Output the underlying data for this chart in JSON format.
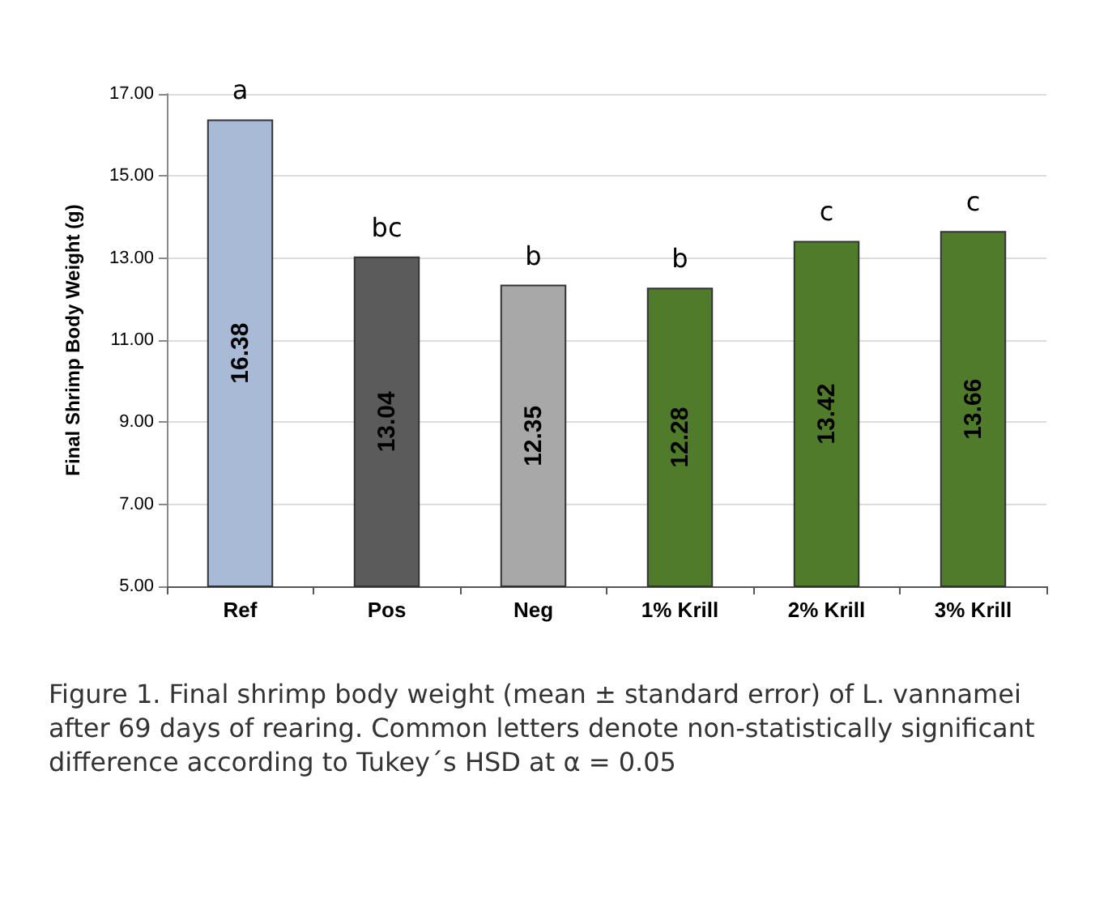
{
  "chart_data": {
    "type": "bar",
    "ylabel": "Final Shrimp Body Weight (g)",
    "categories": [
      "Ref",
      "Pos",
      "Neg",
      "1% Krill",
      "2% Krill",
      "3% Krill"
    ],
    "values": [
      16.38,
      13.04,
      12.35,
      12.28,
      13.42,
      13.66
    ],
    "colors": [
      "#a9bad6",
      "#5b5b5b",
      "#a8a8a8",
      "#4f7b2b",
      "#4f7b2b",
      "#4f7b2b"
    ],
    "ylim": [
      5,
      17
    ],
    "yticks": [
      {
        "value": 5,
        "label": "5.00"
      },
      {
        "value": 7,
        "label": "7.00"
      },
      {
        "value": 9,
        "label": "9.00"
      },
      {
        "value": 11,
        "label": "11.00"
      },
      {
        "value": 13,
        "label": "13.00"
      },
      {
        "value": 15,
        "label": "15.00"
      },
      {
        "value": 17,
        "label": "17.00"
      }
    ],
    "grid": "y",
    "data_labels": true,
    "annotations": [
      "a",
      "bc",
      "b",
      "b",
      "c",
      "c",
      "Figure 1. Final shrimp body weight (mean ± standard error) of L. vannamei after 69 days of rearing. Common letters denote non-statistically significant difference according to Tukey´s HSD at α = 0.05"
    ]
  }
}
